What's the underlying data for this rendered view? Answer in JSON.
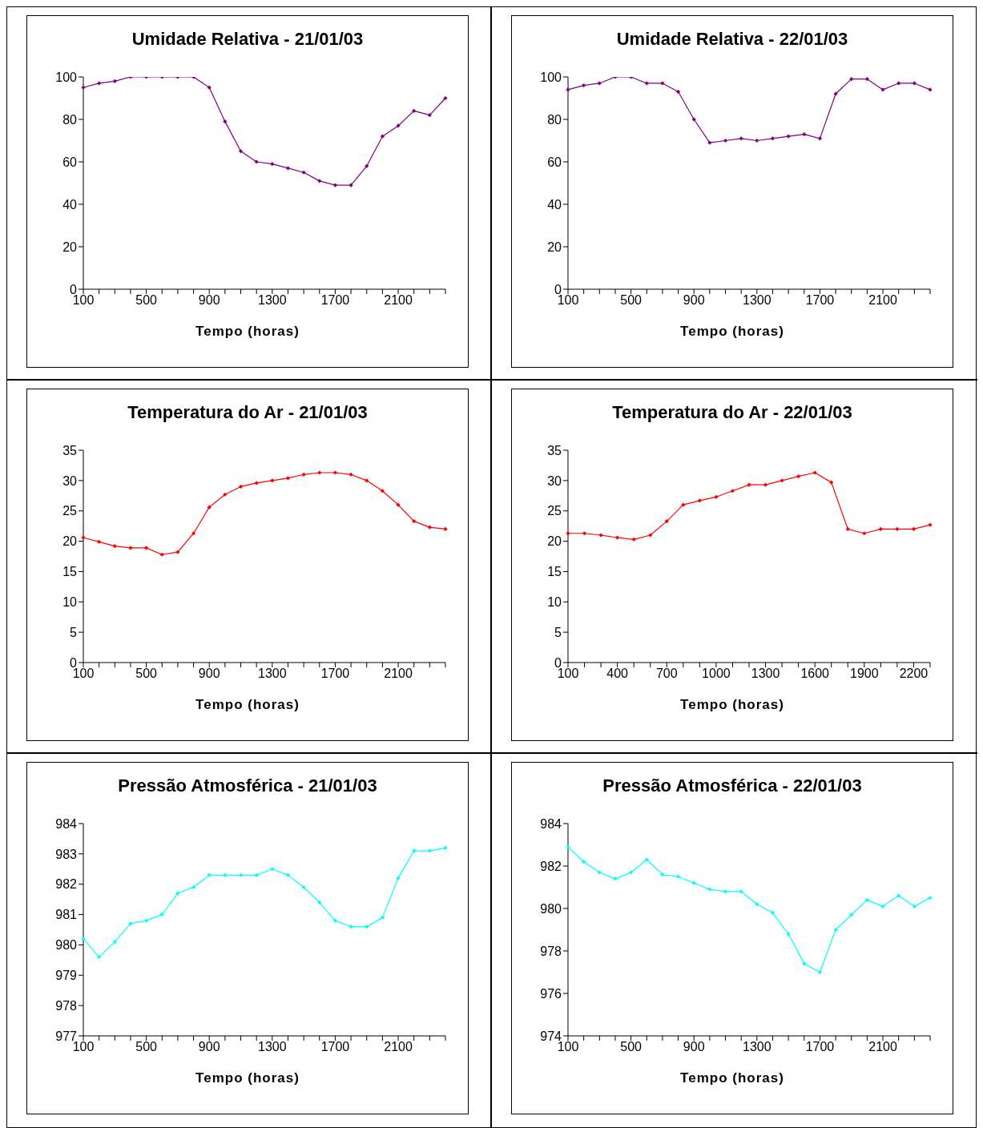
{
  "chart_data": [
    {
      "type": "line",
      "title": "Umidade Relativa - 21/01/03",
      "xlabel": "Tempo (horas)",
      "categories": [
        "100",
        null,
        null,
        null,
        "500",
        null,
        null,
        null,
        "900",
        null,
        null,
        null,
        "1300",
        null,
        null,
        null,
        "1700",
        null,
        null,
        null,
        "2100",
        null,
        null,
        null
      ],
      "series": [
        {
          "color": "#800080",
          "values": [
            95,
            97,
            98,
            100,
            100,
            100,
            100,
            100,
            95,
            79,
            65,
            60,
            59,
            57,
            55,
            51,
            49,
            49,
            58,
            72,
            77,
            84,
            82,
            90
          ]
        }
      ],
      "ylim": [
        0,
        100
      ],
      "yticks": [
        0,
        20,
        40,
        60,
        80,
        100
      ],
      "marker": "diamond",
      "grid": false
    },
    {
      "type": "line",
      "title": "Umidade Relativa - 22/01/03",
      "xlabel": "Tempo (horas)",
      "categories": [
        "100",
        null,
        null,
        null,
        "500",
        null,
        null,
        null,
        "900",
        null,
        null,
        null,
        "1300",
        null,
        null,
        null,
        "1700",
        null,
        null,
        null,
        "2100",
        null,
        null,
        null
      ],
      "series": [
        {
          "color": "#800080",
          "values": [
            94,
            96,
            97,
            100,
            100,
            97,
            97,
            93,
            80,
            69,
            70,
            71,
            70,
            71,
            72,
            73,
            71,
            92,
            99,
            99,
            94,
            97,
            97,
            94
          ]
        }
      ],
      "ylim": [
        0,
        100
      ],
      "yticks": [
        0,
        20,
        40,
        60,
        80,
        100
      ],
      "marker": "diamond",
      "grid": false
    },
    {
      "type": "line",
      "title": "Temperatura do Ar - 21/01/03",
      "xlabel": "Tempo (horas)",
      "categories": [
        "100",
        null,
        null,
        null,
        "500",
        null,
        null,
        null,
        "900",
        null,
        null,
        null,
        "1300",
        null,
        null,
        null,
        "1700",
        null,
        null,
        null,
        "2100",
        null,
        null,
        null
      ],
      "series": [
        {
          "color": "#ff0000",
          "values": [
            20.6,
            19.9,
            19.2,
            18.9,
            18.9,
            17.8,
            18.2,
            21.3,
            25.6,
            27.7,
            29.0,
            29.6,
            30.0,
            30.4,
            31.0,
            31.3,
            31.3,
            31.0,
            30.0,
            28.3,
            26.0,
            23.3,
            22.3,
            22.0
          ]
        }
      ],
      "ylim": [
        0,
        35
      ],
      "yticks": [
        0,
        5,
        10,
        15,
        20,
        25,
        30,
        35
      ],
      "marker": "diamond",
      "grid": false
    },
    {
      "type": "line",
      "title": "Temperatura do Ar - 22/01/03",
      "xlabel": "Tempo (horas)",
      "categories": [
        "100",
        null,
        null,
        "400",
        null,
        null,
        "700",
        null,
        null,
        "1000",
        null,
        null,
        "1300",
        null,
        null,
        "1600",
        null,
        null,
        "1900",
        null,
        null,
        "2200",
        null
      ],
      "series": [
        {
          "color": "#ff0000",
          "values": [
            21.3,
            21.3,
            21.0,
            20.6,
            20.3,
            21.0,
            23.3,
            26.0,
            26.7,
            27.3,
            28.3,
            29.3,
            29.3,
            30.0,
            30.7,
            31.3,
            29.7,
            22.0,
            21.3,
            22.0,
            22.0,
            22.0,
            22.7
          ]
        }
      ],
      "ylim": [
        0,
        35
      ],
      "yticks": [
        0,
        5,
        10,
        15,
        20,
        25,
        30,
        35
      ],
      "marker": "diamond",
      "grid": false
    },
    {
      "type": "line",
      "title": "Pressão Atmosférica - 21/01/03",
      "xlabel": "Tempo (horas)",
      "categories": [
        "100",
        null,
        null,
        null,
        "500",
        null,
        null,
        null,
        "900",
        null,
        null,
        null,
        "1300",
        null,
        null,
        null,
        "1700",
        null,
        null,
        null,
        "2100",
        null,
        null,
        null
      ],
      "series": [
        {
          "color": "#00ffff",
          "values": [
            980.2,
            979.6,
            980.1,
            980.7,
            980.8,
            981.0,
            981.7,
            981.9,
            982.3,
            982.3,
            982.3,
            982.3,
            982.5,
            982.3,
            981.9,
            981.4,
            980.8,
            980.6,
            980.6,
            980.9,
            982.2,
            983.1,
            983.1,
            983.2
          ]
        }
      ],
      "ylim": [
        977,
        984
      ],
      "yticks": [
        977,
        978,
        979,
        980,
        981,
        982,
        983,
        984
      ],
      "marker": "diamond",
      "grid": false
    },
    {
      "type": "line",
      "title": "Pressão Atmosférica - 22/01/03",
      "xlabel": "Tempo (horas)",
      "categories": [
        "100",
        null,
        null,
        null,
        "500",
        null,
        null,
        null,
        "900",
        null,
        null,
        null,
        "1300",
        null,
        null,
        null,
        "1700",
        null,
        null,
        null,
        "2100",
        null,
        null,
        null
      ],
      "series": [
        {
          "color": "#00ffff",
          "values": [
            982.9,
            982.2,
            981.7,
            981.4,
            981.7,
            982.3,
            981.6,
            981.5,
            981.2,
            980.9,
            980.8,
            980.8,
            980.2,
            979.8,
            978.8,
            977.4,
            977.0,
            979.0,
            979.7,
            980.4,
            980.1,
            980.6,
            980.1,
            980.5
          ]
        }
      ],
      "ylim": [
        974,
        984
      ],
      "yticks": [
        974,
        976,
        978,
        980,
        982,
        984
      ],
      "marker": "diamond",
      "grid": false
    }
  ]
}
